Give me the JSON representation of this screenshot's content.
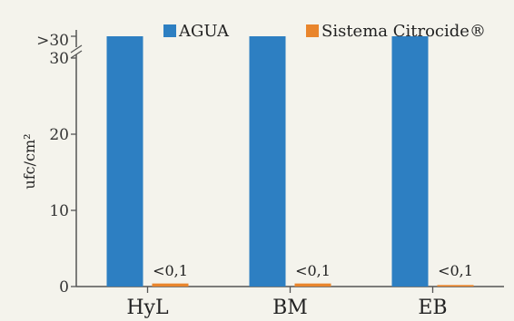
{
  "chart_data": {
    "type": "bar",
    "categories": [
      "HyL",
      "BM",
      "EB"
    ],
    "series": [
      {
        "name": "AGUA",
        "values": [
          31,
          31,
          31
        ],
        "color": "#2d7fc2",
        "labels": [
          "",
          "",
          ""
        ]
      },
      {
        "name": "Sistema Citrocide®",
        "values": [
          0.4,
          0.4,
          0.2
        ],
        "color": "#e9852c",
        "labels": [
          "<0,1",
          "<0,1",
          "<0,1"
        ]
      }
    ],
    "ylabel": "ufc/cm²",
    "xlabel": "",
    "title": "",
    "ylim": [
      0,
      31
    ],
    "yticks": [
      0,
      10,
      20,
      30
    ],
    "y_break_label": ">30",
    "legend": "top",
    "grid": false
  }
}
